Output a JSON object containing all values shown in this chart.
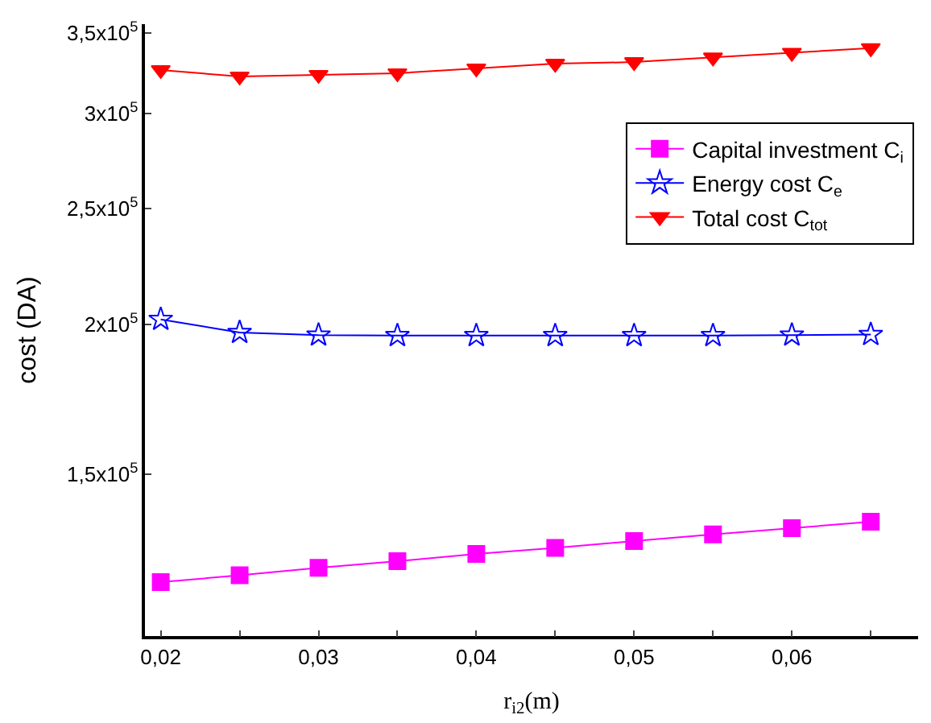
{
  "chart_data": {
    "type": "line",
    "xlabel": "r$_{i2}$(m)",
    "ylabel": "cost (DA)",
    "x": [
      0.02,
      0.025,
      0.03,
      0.035,
      0.04,
      0.045,
      0.05,
      0.055,
      0.06,
      0.065
    ],
    "series": [
      {
        "name": "Capital investment C$_{i}$",
        "color": "#ff00ff",
        "marker": "square",
        "values": [
          122000,
          123600,
          125400,
          127000,
          128800,
          130300,
          132000,
          133700,
          135300,
          137000
        ]
      },
      {
        "name": "Energy cost C$_{e}$",
        "color": "#0000ff",
        "marker": "star",
        "values": [
          202000,
          197000,
          196000,
          195800,
          195800,
          195800,
          195800,
          195800,
          196000,
          196200
        ]
      },
      {
        "name": "Total cost C$_{tot}$",
        "color": "#ff0000",
        "marker": "triangle",
        "values": [
          326000,
          322000,
          323000,
          324000,
          327000,
          330000,
          331000,
          334000,
          337000,
          340000
        ]
      }
    ],
    "log": true,
    "xlim": [
      0.019,
      0.068
    ],
    "xticks": [
      {
        "value": 0.02,
        "label": "0,02"
      },
      {
        "value": 0.025,
        "label": null
      },
      {
        "value": 0.03,
        "label": "0,03"
      },
      {
        "value": 0.035,
        "label": null
      },
      {
        "value": 0.04,
        "label": "0,04"
      },
      {
        "value": 0.045,
        "label": null
      },
      {
        "value": 0.05,
        "label": "0,05"
      },
      {
        "value": 0.055,
        "label": null
      },
      {
        "value": 0.06,
        "label": "0,06"
      },
      {
        "value": 0.065,
        "label": null
      }
    ],
    "ylim": [
      110000,
      356000
    ],
    "yticks": [
      {
        "value": 150000,
        "label": "1,5x10$^{5}$"
      },
      {
        "value": 200000,
        "label": "2x10$^{5}$"
      },
      {
        "value": 250000,
        "label": "2,5x10$^{5}$"
      },
      {
        "value": 300000,
        "label": "3x10$^{5}$"
      },
      {
        "value": 350000,
        "label": "3,5x10$^{5}$"
      }
    ],
    "legend": "top right",
    "line_style": "solid"
  }
}
